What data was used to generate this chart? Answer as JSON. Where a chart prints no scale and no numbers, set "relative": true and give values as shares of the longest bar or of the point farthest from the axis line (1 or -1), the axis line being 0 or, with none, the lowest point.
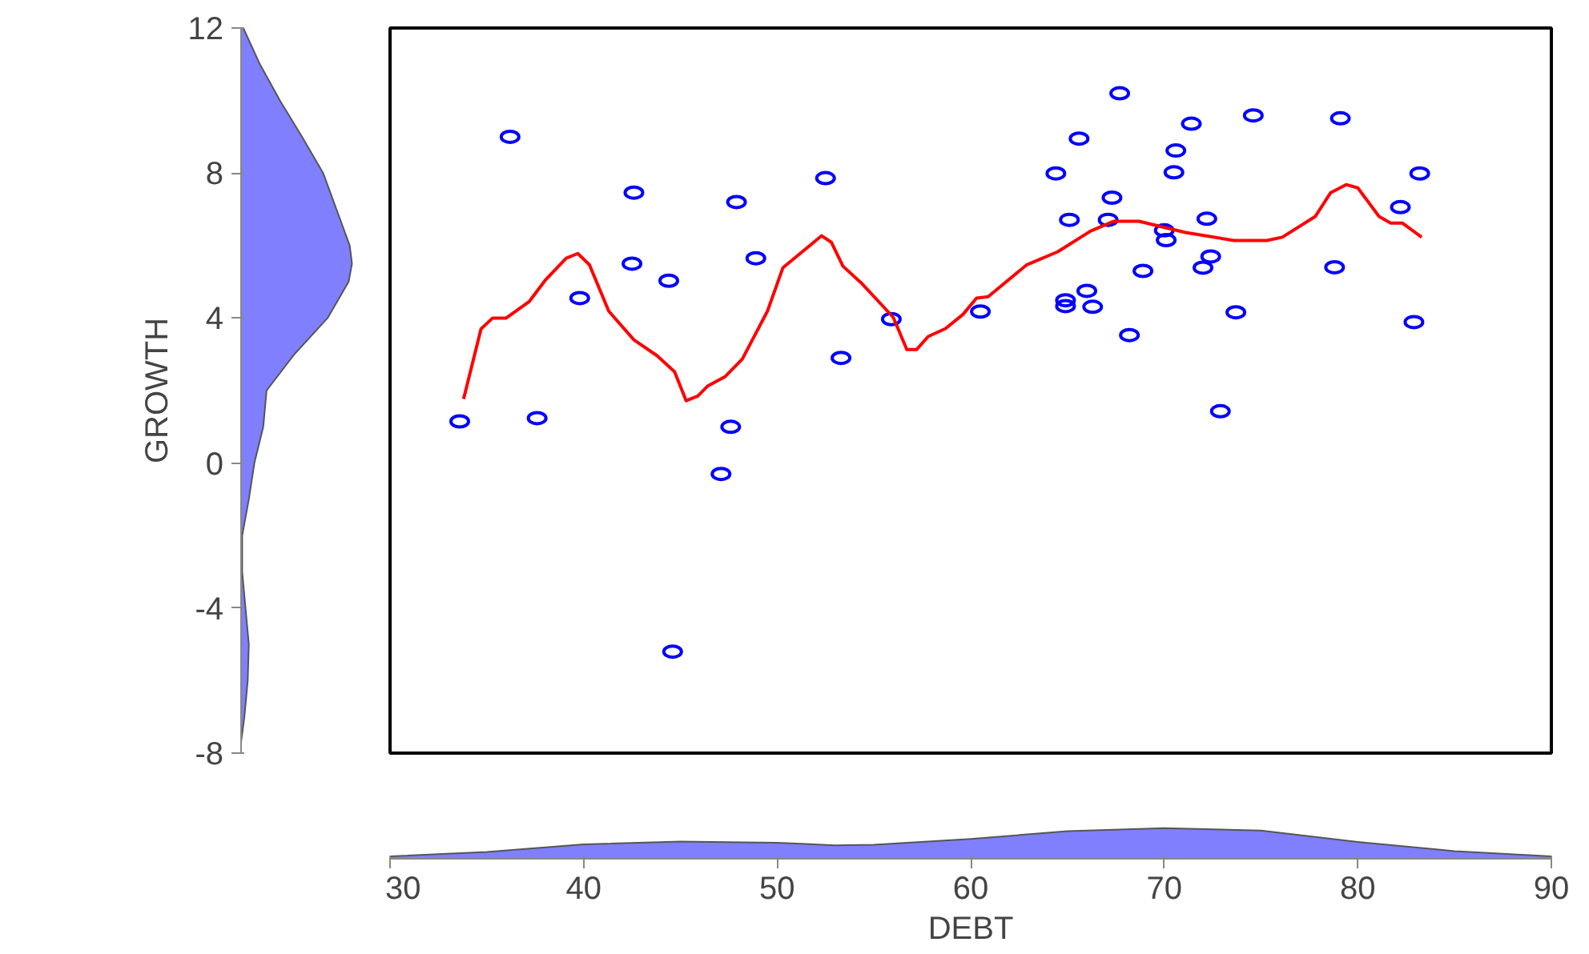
{
  "chart_data": [
    {
      "type": "area",
      "orientation": "horizontal",
      "relative": true,
      "ylabel": "GROWTH",
      "ylim": [
        -8,
        12
      ],
      "yticks": [
        -8,
        -4,
        0,
        4,
        8,
        12
      ],
      "tick_labels": "y",
      "grid": false,
      "x": [
        -7.7,
        -7,
        -6,
        -5,
        -4,
        -3,
        -2,
        -1,
        0,
        1,
        2,
        3,
        4,
        5,
        5.5,
        6,
        7,
        8,
        9,
        10,
        11,
        12
      ],
      "series": [
        {
          "color": "#8080ff",
          "values": [
            0.0,
            0.03,
            0.06,
            0.07,
            0.04,
            0.01,
            0.01,
            0.07,
            0.12,
            0.2,
            0.23,
            0.48,
            0.78,
            0.97,
            1.0,
            0.98,
            0.86,
            0.74,
            0.55,
            0.35,
            0.17,
            0.02
          ]
        }
      ]
    },
    {
      "type": "scatter",
      "xlim": [
        30,
        90
      ],
      "ylim": [
        -8,
        12
      ],
      "tick_labels": false,
      "grid": false,
      "marker": "circle",
      "series": [
        {
          "type": "scatter",
          "color": "#0000ff",
          "x": [
            33.6,
            36.2,
            37.6,
            39.8,
            42.5,
            42.6,
            44.4,
            44.6,
            47.1,
            47.6,
            47.9,
            48.9,
            52.5,
            53.3,
            55.9,
            60.5,
            64.4,
            65.1,
            65.6,
            64.9,
            64.9,
            66.0,
            66.3,
            67.7,
            67.3,
            67.1,
            68.2,
            68.9,
            70.6,
            70.5,
            70.0,
            70.1,
            71.4,
            72.2,
            72.4,
            72.0,
            72.9,
            73.7,
            74.6,
            78.8,
            79.1,
            82.2,
            83.2,
            82.9
          ],
          "values": [
            1.15,
            9.0,
            1.24,
            4.55,
            5.5,
            7.46,
            5.03,
            -5.2,
            -0.3,
            1.0,
            7.2,
            5.65,
            7.86,
            2.9,
            3.97,
            4.18,
            7.99,
            6.71,
            8.95,
            4.49,
            4.33,
            4.75,
            4.31,
            10.2,
            7.32,
            6.71,
            3.53,
            5.3,
            8.62,
            8.02,
            6.42,
            6.15,
            9.36,
            6.74,
            5.7,
            5.39,
            1.43,
            4.16,
            9.59,
            5.4,
            9.51,
            7.06,
            7.99,
            3.89
          ]
        },
        {
          "type": "line",
          "color": "#ff0000",
          "line_style": "solid",
          "marker": "none",
          "x": [
            33.8,
            34.7,
            35.3,
            36.0,
            37.2,
            38.0,
            39.1,
            39.7,
            40.3,
            41.3,
            42.6,
            43.8,
            44.7,
            45.3,
            45.9,
            46.4,
            47.3,
            48.2,
            49.5,
            50.3,
            51.3,
            52.3,
            52.8,
            53.4,
            54.4,
            56.0,
            56.7,
            57.2,
            57.8,
            58.7,
            59.6,
            60.3,
            60.9,
            62.9,
            64.5,
            66.2,
            67.4,
            68.7,
            71.1,
            73.6,
            75.3,
            76.1,
            77.8,
            78.6,
            79.4,
            80.0,
            81.1,
            81.7,
            82.3,
            83.3
          ],
          "values": [
            1.77,
            3.7,
            4.0,
            4.0,
            4.46,
            5.03,
            5.65,
            5.78,
            5.47,
            4.19,
            3.4,
            2.96,
            2.52,
            1.72,
            1.85,
            2.12,
            2.38,
            2.87,
            4.19,
            5.39,
            5.83,
            6.27,
            6.09,
            5.43,
            4.94,
            4.02,
            3.13,
            3.13,
            3.49,
            3.71,
            4.1,
            4.55,
            4.59,
            5.47,
            5.83,
            6.4,
            6.67,
            6.67,
            6.36,
            6.14,
            6.14,
            6.23,
            6.8,
            7.46,
            7.68,
            7.59,
            6.8,
            6.62,
            6.62,
            6.23
          ]
        }
      ]
    },
    {
      "type": "area",
      "relative": true,
      "xlabel": "DEBT",
      "xlim": [
        30,
        90
      ],
      "xticks": [
        30,
        40,
        50,
        60,
        70,
        80,
        90
      ],
      "tick_labels": "x",
      "grid": false,
      "x": [
        30,
        35,
        40,
        45,
        50,
        53,
        55,
        60,
        65,
        70,
        75,
        80,
        85,
        90
      ],
      "series": [
        {
          "color": "#8080ff",
          "values": [
            0.08,
            0.22,
            0.47,
            0.56,
            0.52,
            0.44,
            0.46,
            0.65,
            0.9,
            1.0,
            0.92,
            0.55,
            0.25,
            0.08
          ]
        }
      ]
    }
  ]
}
